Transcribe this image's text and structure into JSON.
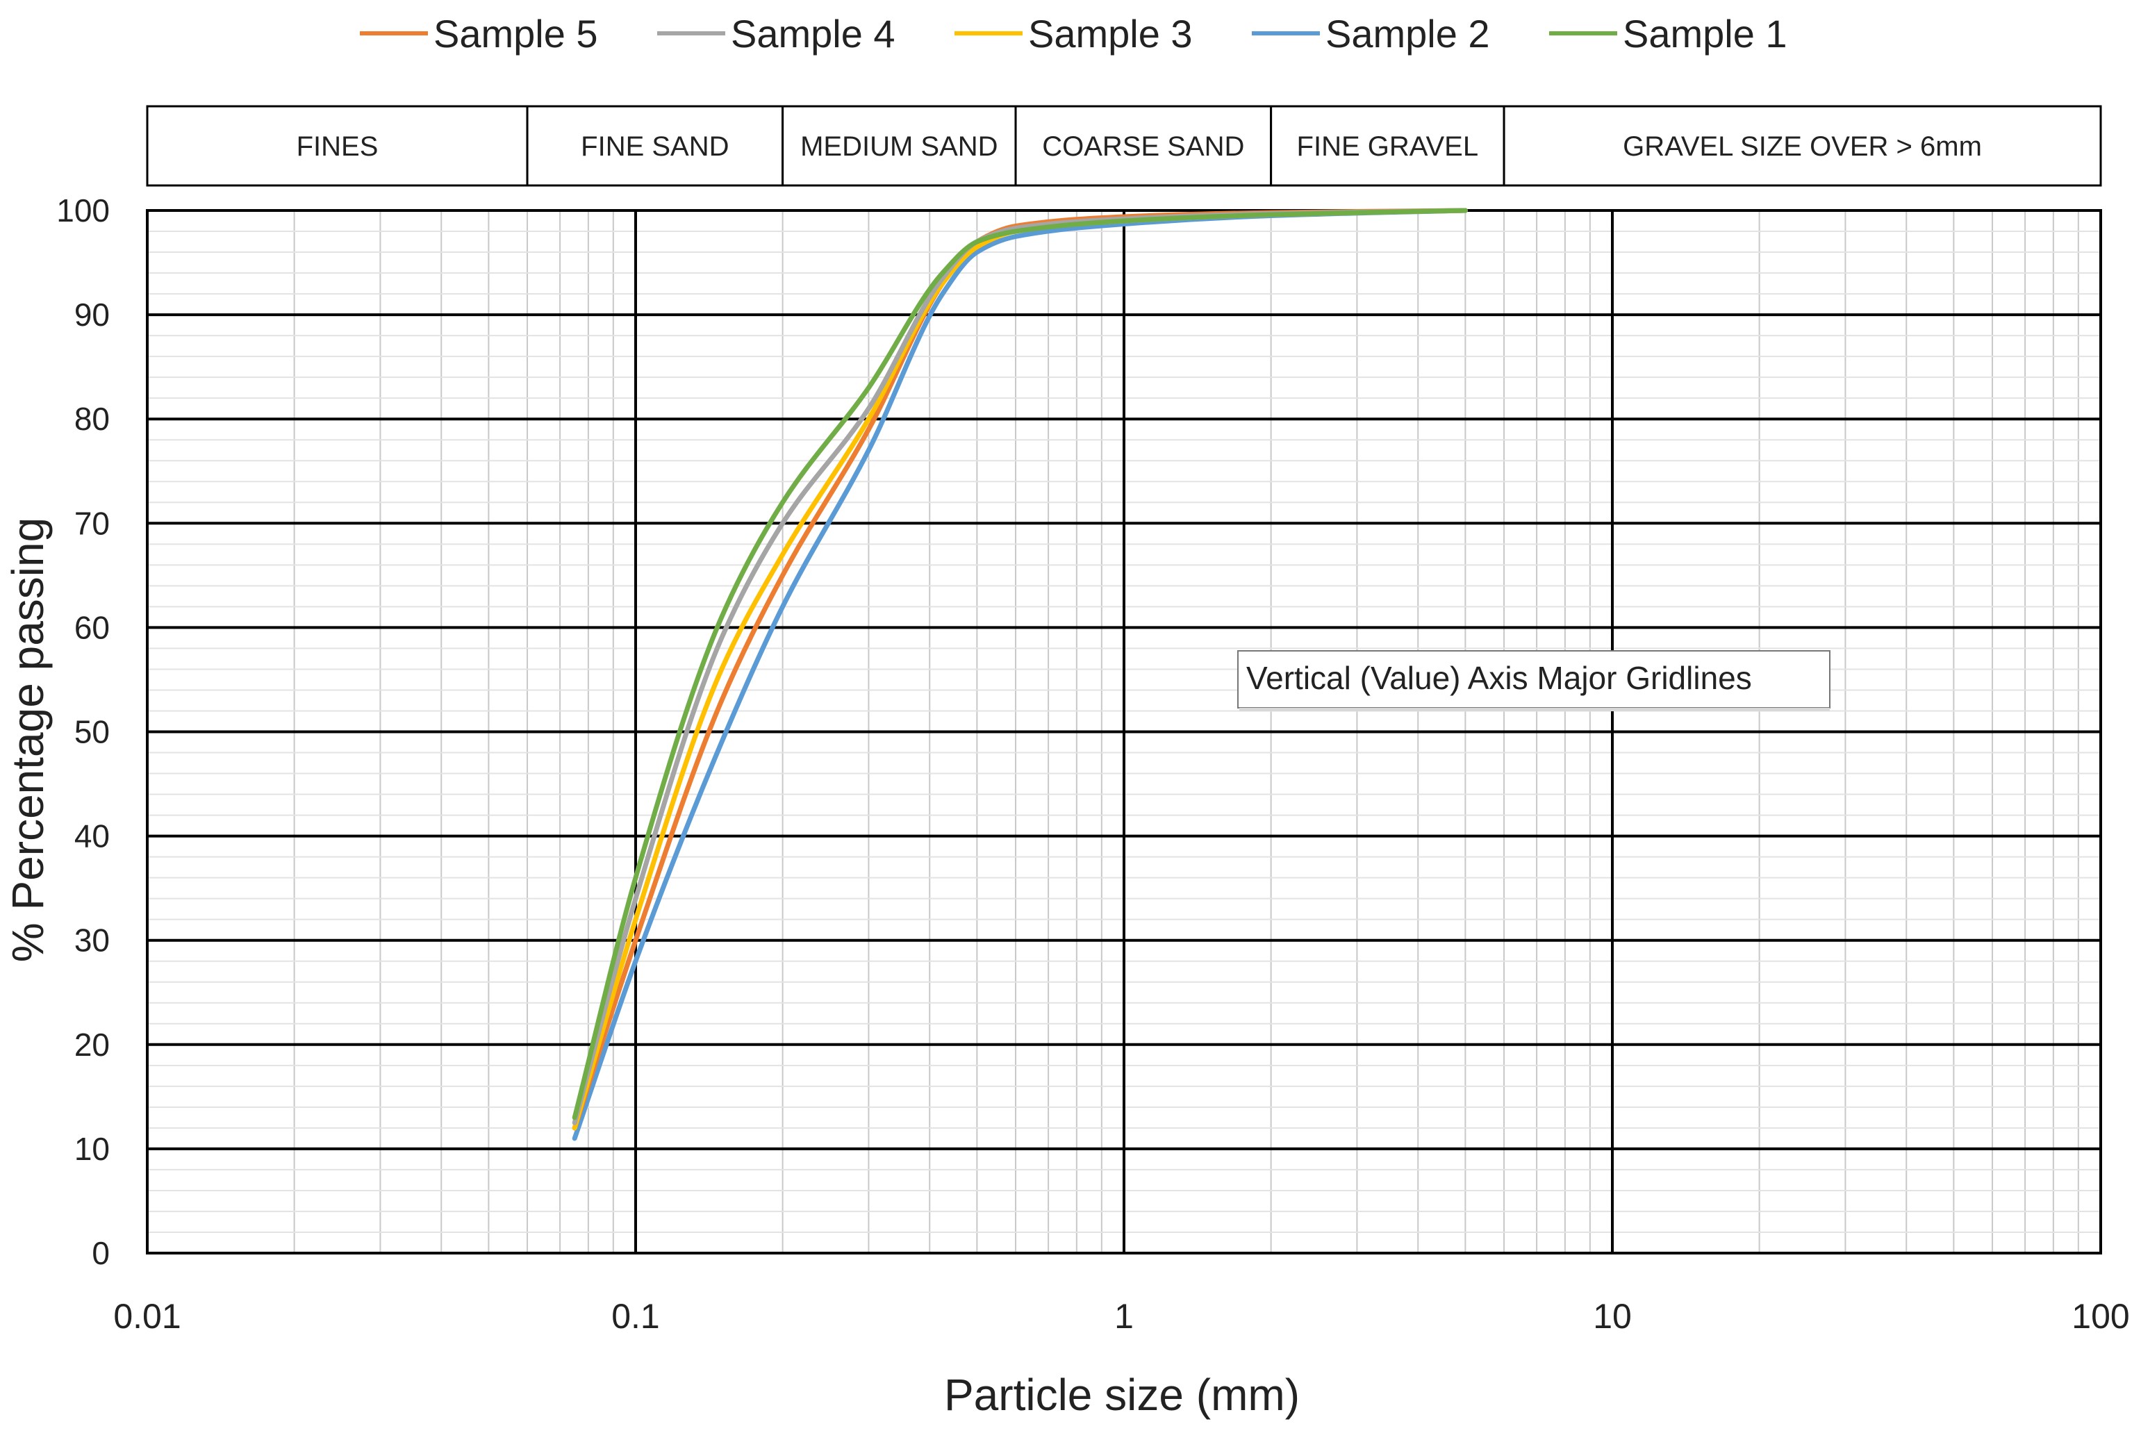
{
  "chart_data": {
    "type": "line",
    "x_scale": "log",
    "xlabel": "Particle size (mm)",
    "ylabel": "% Percentage passing",
    "xlim": [
      0.01,
      100
    ],
    "ylim": [
      0,
      100
    ],
    "x_ticks": [
      0.01,
      0.1,
      1,
      10,
      100
    ],
    "x_tick_labels": [
      "0.01",
      "0.1",
      "1",
      "10",
      "100"
    ],
    "y_ticks": [
      0,
      10,
      20,
      30,
      40,
      50,
      60,
      70,
      80,
      90,
      100
    ],
    "y_tick_labels": [
      "0",
      "10",
      "20",
      "30",
      "40",
      "50",
      "60",
      "70",
      "80",
      "90",
      "100"
    ],
    "grid": true,
    "legend_position": "top",
    "legend": [
      "Sample 5",
      "Sample 4",
      "Sample 3",
      "Sample 2",
      "Sample 1"
    ],
    "zones": [
      {
        "label": "FINES",
        "from": 0.01,
        "to": 0.06
      },
      {
        "label": "FINE SAND",
        "from": 0.06,
        "to": 0.2
      },
      {
        "label": "MEDIUM SAND",
        "from": 0.2,
        "to": 0.6
      },
      {
        "label": "COARSE SAND",
        "from": 0.6,
        "to": 2
      },
      {
        "label": "FINE GRAVEL",
        "from": 2,
        "to": 6
      },
      {
        "label": "GRAVEL SIZE OVER > 6mm",
        "from": 6,
        "to": 100
      }
    ],
    "tooltip": "Vertical (Value) Axis Major Gridlines",
    "series": [
      {
        "name": "Sample 1",
        "color": "#70AD47",
        "x": [
          0.075,
          0.1,
          0.15,
          0.2,
          0.3,
          0.425,
          0.5,
          0.6,
          1,
          2,
          5
        ],
        "y": [
          13,
          36,
          61,
          72,
          83,
          94,
          97,
          98,
          99,
          99.6,
          100
        ]
      },
      {
        "name": "Sample 2",
        "color": "#5B9BD5",
        "x": [
          0.075,
          0.1,
          0.15,
          0.2,
          0.3,
          0.425,
          0.5,
          0.6,
          1,
          2,
          5
        ],
        "y": [
          11,
          28,
          49,
          62,
          77,
          92,
          96,
          97.5,
          98.7,
          99.5,
          100
        ]
      },
      {
        "name": "Sample 3",
        "color": "#FFC000",
        "x": [
          0.075,
          0.1,
          0.15,
          0.2,
          0.3,
          0.425,
          0.5,
          0.6,
          1,
          2,
          5
        ],
        "y": [
          12,
          32,
          56,
          67,
          80,
          93,
          96.5,
          98,
          99,
          99.6,
          100
        ]
      },
      {
        "name": "Sample 4",
        "color": "#A5A5A5",
        "x": [
          0.075,
          0.1,
          0.15,
          0.2,
          0.3,
          0.425,
          0.5,
          0.6,
          1,
          2,
          5
        ],
        "y": [
          12.5,
          34,
          59,
          70,
          81,
          93.5,
          97,
          98.3,
          99.2,
          99.7,
          100
        ]
      },
      {
        "name": "Sample 5",
        "color": "#ED7D31",
        "x": [
          0.075,
          0.1,
          0.15,
          0.2,
          0.3,
          0.425,
          0.5,
          0.6,
          1,
          2,
          5
        ],
        "y": [
          12,
          30,
          53,
          65,
          79,
          93,
          97,
          98.5,
          99.4,
          99.8,
          100
        ]
      }
    ]
  }
}
